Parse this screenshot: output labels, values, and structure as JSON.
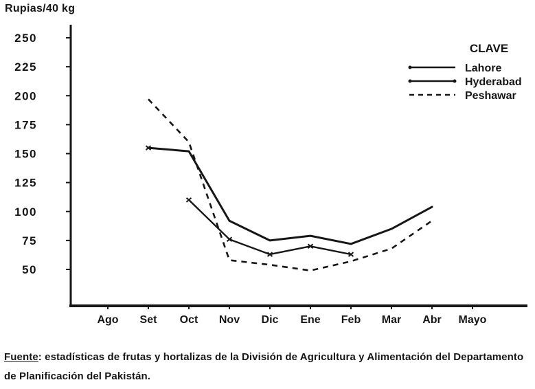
{
  "axis_title": "Rupias/40 kg",
  "colors": {
    "ink": "#161616",
    "paper": "#ffffff"
  },
  "source_note": {
    "label": "Fuente",
    "text": ": estadísticas de frutas y hortalizas de la División de Agricultura y Alimentación del Departamento de Planificación del Pakistán."
  },
  "chart_data": {
    "type": "line",
    "title": "",
    "ylabel": "Rupias/40 kg",
    "xlabel": "",
    "units": "Rupias/40 kg",
    "categories": [
      "Ago",
      "Set",
      "Oct",
      "Nov",
      "Dic",
      "Ene",
      "Feb",
      "Mar",
      "Abr",
      "Mayo"
    ],
    "y_ticks": [
      250,
      225,
      200,
      175,
      150,
      125,
      100,
      75,
      50
    ],
    "ylim": [
      20,
      260
    ],
    "grid": false,
    "legend": {
      "title": "CLAVE",
      "position": "top-right",
      "entries": [
        "Lahore",
        "Hyderabad",
        "Peshawar"
      ]
    },
    "series": [
      {
        "name": "Lahore",
        "line": "solid",
        "marker": "first-point",
        "start_category": "Set",
        "values": [
          155,
          152,
          92,
          75,
          79,
          72,
          85,
          104
        ]
      },
      {
        "name": "Hyderabad",
        "line": "solid",
        "marker": "x-all-points",
        "start_category": "Oct",
        "values": [
          110,
          76,
          63,
          70,
          63
        ]
      },
      {
        "name": "Peshawar",
        "line": "dashed",
        "marker": "none",
        "start_category": "Set",
        "values": [
          197,
          160,
          58,
          54,
          49,
          57,
          68,
          92
        ]
      }
    ]
  }
}
